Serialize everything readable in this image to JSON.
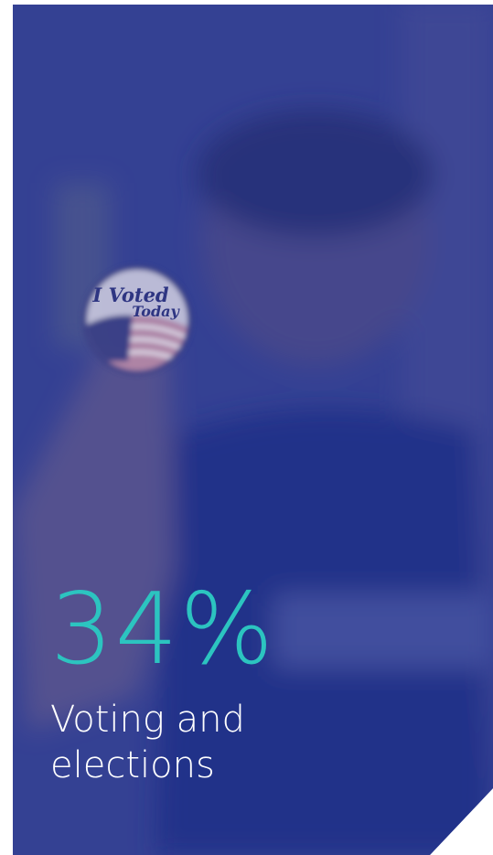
{
  "photo": {
    "sticker_lines": [
      "I Voted",
      "Today"
    ]
  },
  "stat": {
    "value": "34%",
    "label_lines": [
      "Voting and",
      "elections"
    ]
  }
}
